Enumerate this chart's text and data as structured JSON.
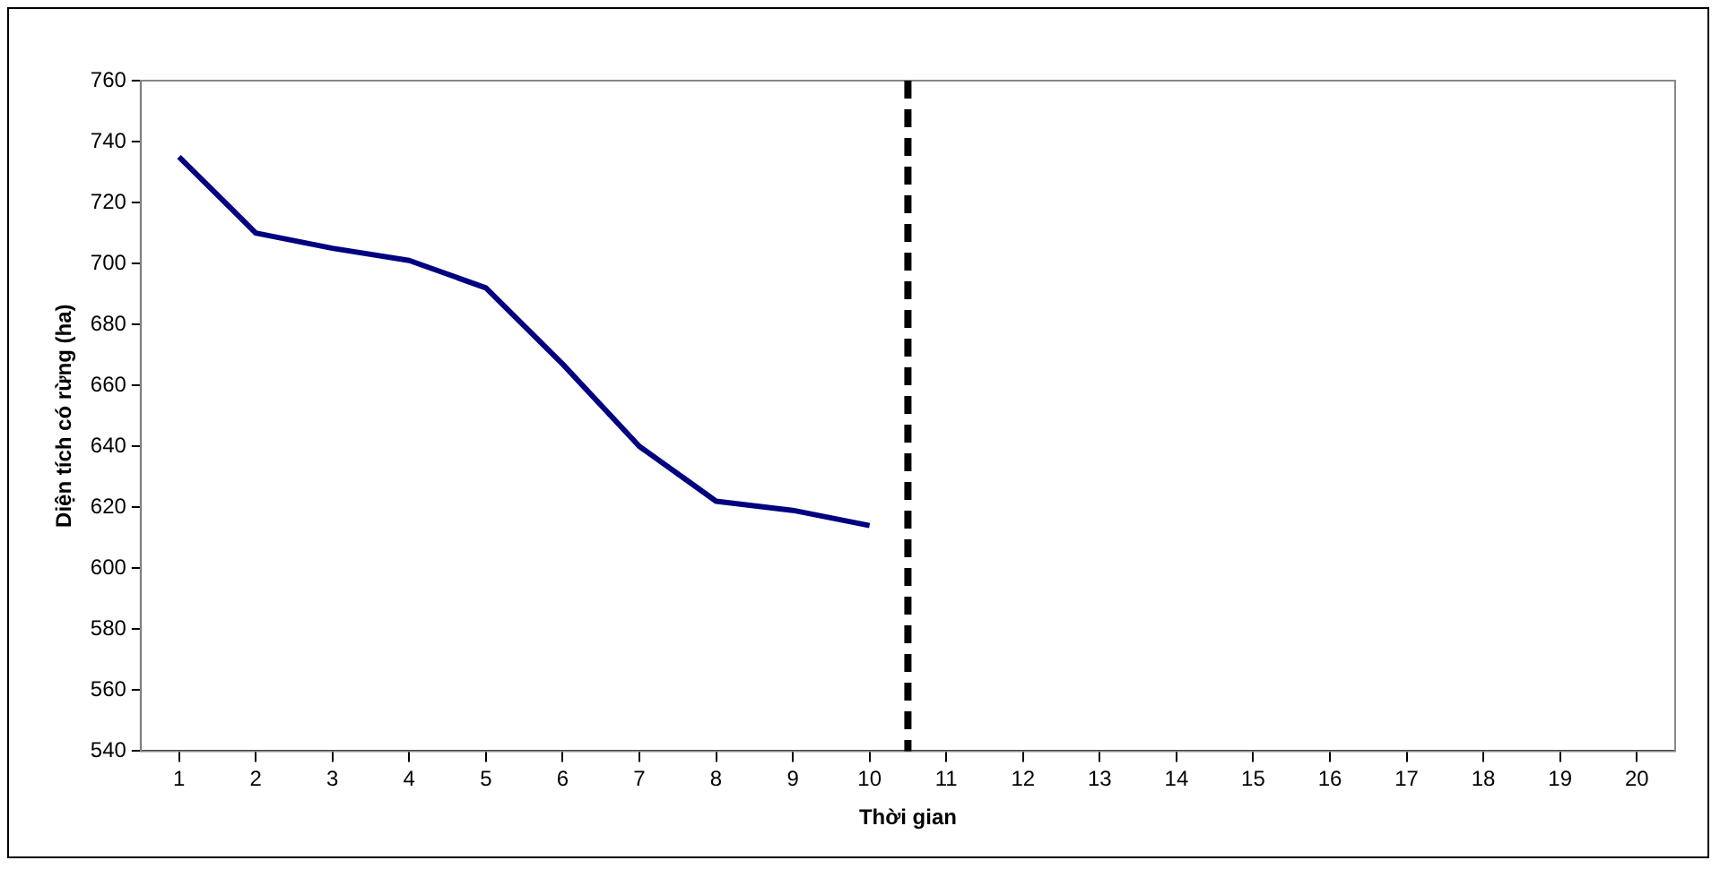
{
  "chart_data": {
    "type": "line",
    "xlabel": "Thời gian",
    "ylabel": "Diện tích có rừng (ha)",
    "x": [
      1,
      2,
      3,
      4,
      5,
      6,
      7,
      8,
      9,
      10
    ],
    "series": [
      {
        "color": "#000080",
        "values": [
          735,
          710,
          705,
          701,
          692,
          667,
          640,
          622,
          619,
          614
        ]
      }
    ],
    "xlim": [
      0.5,
      20.5
    ],
    "xticks": [
      1,
      2,
      3,
      4,
      5,
      6,
      7,
      8,
      9,
      10,
      11,
      12,
      13,
      14,
      15,
      16,
      17,
      18,
      19,
      20
    ],
    "ylim": [
      540,
      760
    ],
    "yticks": [
      540,
      560,
      580,
      600,
      620,
      640,
      660,
      680,
      700,
      720,
      740,
      760
    ],
    "ref_lines": [
      {
        "axis": "x",
        "value": 10.5,
        "color": "#000000",
        "line_style": "dashed"
      }
    ],
    "grid": false,
    "legend": false,
    "marker": "none",
    "line_style": "solid"
  }
}
